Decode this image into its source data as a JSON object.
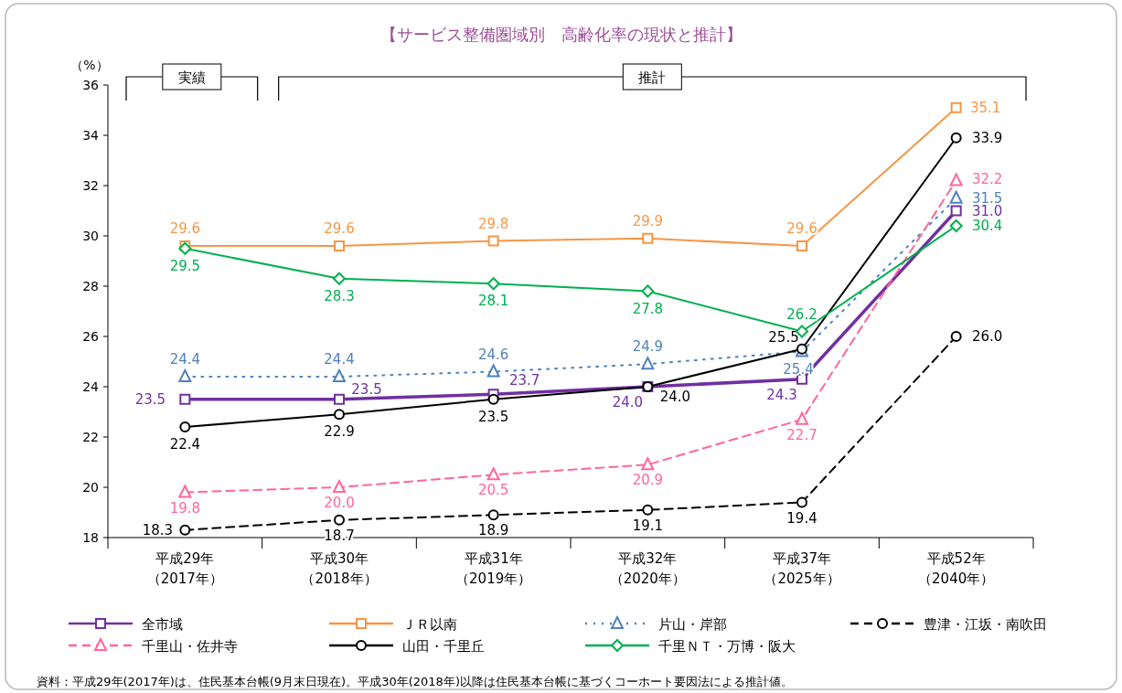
{
  "chart_data": {
    "type": "line",
    "title": "【サービス整備圏域別　高齢化率の現状と推計】",
    "ylabel": "（%）",
    "categories": [
      "平成29年（2017年）",
      "平成30年（2018年）",
      "平成31年（2019年）",
      "平成32年（2020年）",
      "平成37年（2025年）",
      "平成52年（2040年）"
    ],
    "ylim": [
      18,
      36
    ],
    "yticks": [
      18,
      20,
      22,
      24,
      26,
      28,
      30,
      32,
      34,
      36
    ],
    "grid": false,
    "legend": "bottom",
    "series": [
      {
        "name": "全市域",
        "color": "#7030a0",
        "values": [
          23.5,
          23.5,
          23.7,
          24.0,
          24.3,
          31.0
        ],
        "value_labels": [
          "23.5",
          "23.5",
          "23.7",
          "24.0",
          "24.3",
          "31.0"
        ],
        "marker": "square",
        "line_style": "solid"
      },
      {
        "name": "ＪＲ以南",
        "color": "#f79646",
        "values": [
          29.6,
          29.6,
          29.8,
          29.9,
          29.6,
          35.1
        ],
        "value_labels": [
          "29.6",
          "29.6",
          "29.8",
          "29.9",
          "29.6",
          "35.1"
        ],
        "marker": "square",
        "line_style": "solid"
      },
      {
        "name": "片山・岸部",
        "color": "#4f81bd",
        "values": [
          24.4,
          24.4,
          24.6,
          24.9,
          25.4,
          31.5
        ],
        "value_labels": [
          "24.4",
          "24.4",
          "24.6",
          "24.9",
          "25.4",
          "31.5"
        ],
        "marker": "triangle",
        "line_style": "dotted"
      },
      {
        "name": "豊津・江坂・南吹田",
        "color": "#000000",
        "values": [
          18.3,
          18.7,
          18.9,
          19.1,
          19.4,
          26.0
        ],
        "value_labels": [
          "18.3",
          "18.7",
          "18.9",
          "19.1",
          "19.4",
          "26.0"
        ],
        "marker": "circle",
        "line_style": "dashed"
      },
      {
        "name": "千里山・佐井寺",
        "color": "#ff6699",
        "values": [
          19.8,
          20.0,
          20.5,
          20.9,
          22.7,
          32.2
        ],
        "value_labels": [
          "19.8",
          "20.0",
          "20.5",
          "20.9",
          "22.7",
          "32.2"
        ],
        "marker": "triangle",
        "line_style": "dashed"
      },
      {
        "name": "山田・千里丘",
        "color": "#000000",
        "values": [
          22.4,
          22.9,
          23.5,
          24.0,
          25.5,
          33.9
        ],
        "value_labels": [
          "22.4",
          "22.9",
          "23.5",
          "24.0",
          "25.5",
          "33.9"
        ],
        "marker": "circle",
        "line_style": "solid"
      },
      {
        "name": "千里ＮＴ・万博・阪大",
        "color": "#00b050",
        "values": [
          29.5,
          28.3,
          28.1,
          27.8,
          26.2,
          30.4
        ],
        "value_labels": [
          "29.5",
          "28.3",
          "28.1",
          "27.8",
          "26.2",
          "30.4"
        ],
        "marker": "diamond",
        "line_style": "solid"
      }
    ],
    "annotations": [
      "実績",
      "推計",
      "資料：平成29年(2017年)は、住民基本台帳(9月末日現在)。平成30年(2018年)以降は住民基本台帳に基づくコーホート要因法による推計値。"
    ]
  }
}
